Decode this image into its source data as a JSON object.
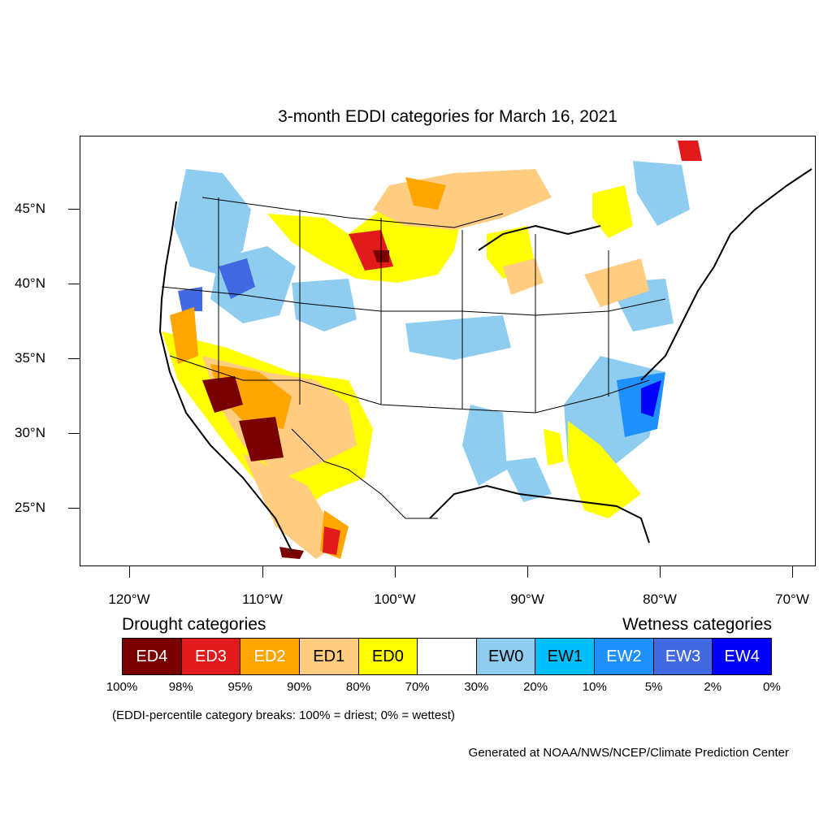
{
  "title": "3-month EDDI categories for March 16, 2021",
  "map": {
    "lat_labels": [
      "45°N",
      "40°N",
      "35°N",
      "30°N",
      "25°N"
    ],
    "lon_labels": [
      "120°W",
      "110°W",
      "100°W",
      "90°W",
      "80°W",
      "70°W"
    ]
  },
  "legend": {
    "drought_heading": "Drought categories",
    "wetness_heading": "Wetness categories",
    "categories": [
      {
        "label": "ED4",
        "color": "#7a0000",
        "text_color": "#ffffff"
      },
      {
        "label": "ED3",
        "color": "#e31a1c",
        "text_color": "#ffffff"
      },
      {
        "label": "ED2",
        "color": "#ffa500",
        "text_color": "#ffffff"
      },
      {
        "label": "ED1",
        "color": "#ffcc80",
        "text_color": "#000000"
      },
      {
        "label": "ED0",
        "color": "#ffff00",
        "text_color": "#000000"
      },
      {
        "label": "",
        "color": "#ffffff",
        "text_color": "#000000"
      },
      {
        "label": "EW0",
        "color": "#8ecdf0",
        "text_color": "#000000"
      },
      {
        "label": "EW1",
        "color": "#00bfff",
        "text_color": "#000000"
      },
      {
        "label": "EW2",
        "color": "#1e90ff",
        "text_color": "#ffffff"
      },
      {
        "label": "EW3",
        "color": "#4169e1",
        "text_color": "#ffffff"
      },
      {
        "label": "EW4",
        "color": "#0000ff",
        "text_color": "#ffffff"
      }
    ],
    "breaks": [
      "100%",
      "98%",
      "95%",
      "90%",
      "80%",
      "70%",
      "30%",
      "20%",
      "10%",
      "5%",
      "2%",
      "0%"
    ],
    "note": "(EDDI-percentile category breaks: 100% = driest; 0% = wettest)"
  },
  "credit": "Generated at NOAA/NWS/NCEP/Climate Prediction Center"
}
